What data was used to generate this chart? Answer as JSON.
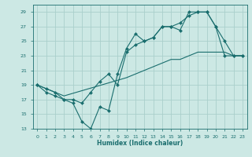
{
  "xlabel": "Humidex (Indice chaleur)",
  "bg_color": "#cce8e4",
  "grid_color": "#aacfcb",
  "line_color": "#1a6e6e",
  "xlim": [
    -0.5,
    23.5
  ],
  "ylim": [
    13,
    30
  ],
  "xticks": [
    0,
    1,
    2,
    3,
    4,
    5,
    6,
    7,
    8,
    9,
    10,
    11,
    12,
    13,
    14,
    15,
    16,
    17,
    18,
    19,
    20,
    21,
    22,
    23
  ],
  "yticks": [
    13,
    15,
    17,
    19,
    21,
    23,
    25,
    27,
    29
  ],
  "curve1_x": [
    0,
    1,
    2,
    3,
    4,
    5,
    6,
    7,
    8,
    9,
    10,
    11,
    12,
    13,
    14,
    15,
    16,
    17,
    18,
    19,
    20,
    21,
    22,
    23
  ],
  "curve1_y": [
    19,
    18,
    17.5,
    17,
    16.5,
    14,
    13,
    16,
    15.5,
    20.5,
    24,
    26,
    25,
    25.5,
    27,
    27,
    26.5,
    29,
    29,
    29,
    27,
    23,
    23,
    23
  ],
  "curve2_x": [
    0,
    1,
    2,
    3,
    10,
    11,
    12,
    13,
    14,
    15,
    16,
    17,
    18,
    19,
    20,
    21,
    22,
    23
  ],
  "curve2_y": [
    19,
    18.5,
    18,
    17.5,
    20,
    20.5,
    21,
    21.5,
    22,
    22.5,
    22.5,
    23,
    23.5,
    23.5,
    23.5,
    23.5,
    23,
    23
  ],
  "curve3_x": [
    0,
    1,
    2,
    3,
    4,
    5,
    6,
    7,
    8,
    9,
    10,
    11,
    12,
    13,
    14,
    15,
    16,
    17,
    18,
    19,
    20,
    21,
    22,
    23
  ],
  "curve3_y": [
    19,
    18.5,
    18,
    17,
    17,
    16.5,
    18,
    19.5,
    20.5,
    19,
    23.5,
    24.5,
    25,
    25.5,
    27,
    27,
    27.5,
    28.5,
    29,
    29,
    27,
    25,
    23,
    23
  ]
}
